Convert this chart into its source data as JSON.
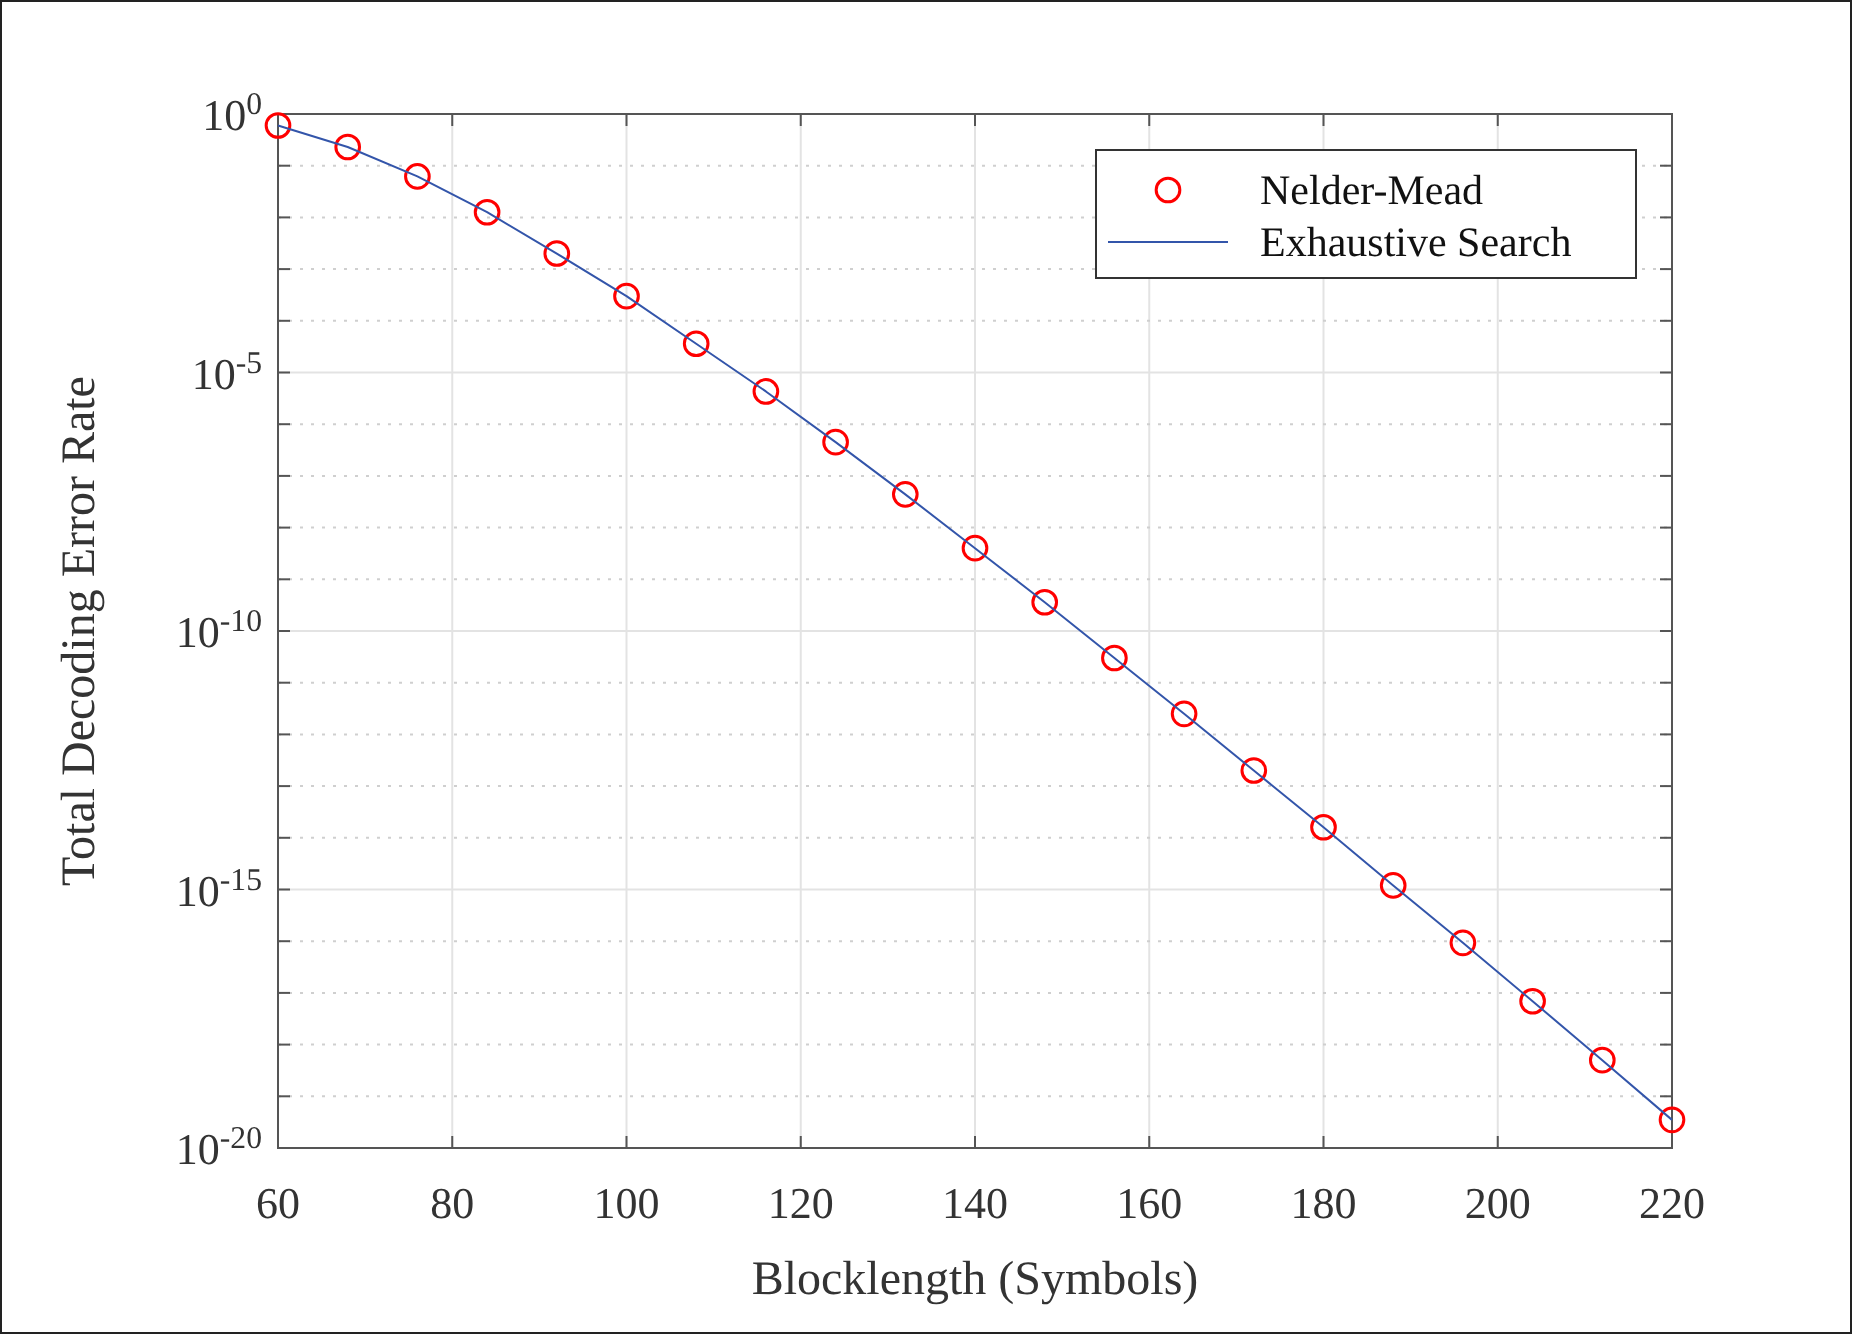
{
  "chart_data": {
    "type": "line",
    "xlabel": "Blocklength (Symbols)",
    "ylabel": "Total Decoding Error Rate",
    "log": "y",
    "grid": true,
    "legend": "top right",
    "xlim": [
      60,
      220
    ],
    "xticks": [
      60,
      80,
      100,
      120,
      140,
      160,
      180,
      200,
      220
    ],
    "ylim": [
      1e-20,
      1
    ],
    "yticks": [
      {
        "value": 1,
        "label": "10$^{0}$"
      },
      {
        "value": 0.1,
        "label": null
      },
      {
        "value": 0.01,
        "label": null
      },
      {
        "value": 0.001,
        "label": null
      },
      {
        "value": 0.0001,
        "label": null
      },
      {
        "value": 1e-05,
        "label": "10$^{-5}$"
      },
      {
        "value": 1e-06,
        "label": null
      },
      {
        "value": 1e-07,
        "label": null
      },
      {
        "value": 1e-08,
        "label": null
      },
      {
        "value": 1e-09,
        "label": null
      },
      {
        "value": 1e-10,
        "label": "10$^{-10}$"
      },
      {
        "value": 1e-11,
        "label": null
      },
      {
        "value": 1e-12,
        "label": null
      },
      {
        "value": 1e-13,
        "label": null
      },
      {
        "value": 1e-14,
        "label": null
      },
      {
        "value": 1e-15,
        "label": "10$^{-15}$"
      },
      {
        "value": 1e-16,
        "label": null
      },
      {
        "value": 1e-17,
        "label": null
      },
      {
        "value": 1e-18,
        "label": null
      },
      {
        "value": 1e-19,
        "label": null
      },
      {
        "value": 1e-20,
        "label": "10$^{-20}$"
      }
    ],
    "x": [
      60,
      68,
      76,
      84,
      92,
      100,
      108,
      116,
      124,
      132,
      140,
      148,
      156,
      164,
      172,
      180,
      188,
      196,
      204,
      212,
      220
    ],
    "series": [
      {
        "name": "Nelder-Mead",
        "type": "scatter",
        "marker": "circle",
        "color": "#ff0000",
        "values": [
          0.6,
          0.23,
          0.062,
          0.0126,
          0.002,
          0.0003,
          3.6e-05,
          4.3e-06,
          4.5e-07,
          4.4e-08,
          4e-09,
          3.6e-10,
          3e-11,
          2.5e-12,
          2e-13,
          1.6e-14,
          1.2e-15,
          9.3e-17,
          6.9e-18,
          5e-19,
          3.5e-20
        ]
      },
      {
        "name": "Exhaustive Search",
        "line_style": "solid",
        "color": "#3355aa",
        "values": [
          0.6,
          0.23,
          0.062,
          0.0126,
          0.002,
          0.0003,
          3.6e-05,
          4.3e-06,
          4.5e-07,
          4.4e-08,
          4e-09,
          3.6e-10,
          3e-11,
          2.5e-12,
          2e-13,
          1.6e-14,
          1.2e-15,
          9.3e-17,
          6.9e-18,
          5e-19,
          3.5e-20
        ]
      }
    ]
  }
}
